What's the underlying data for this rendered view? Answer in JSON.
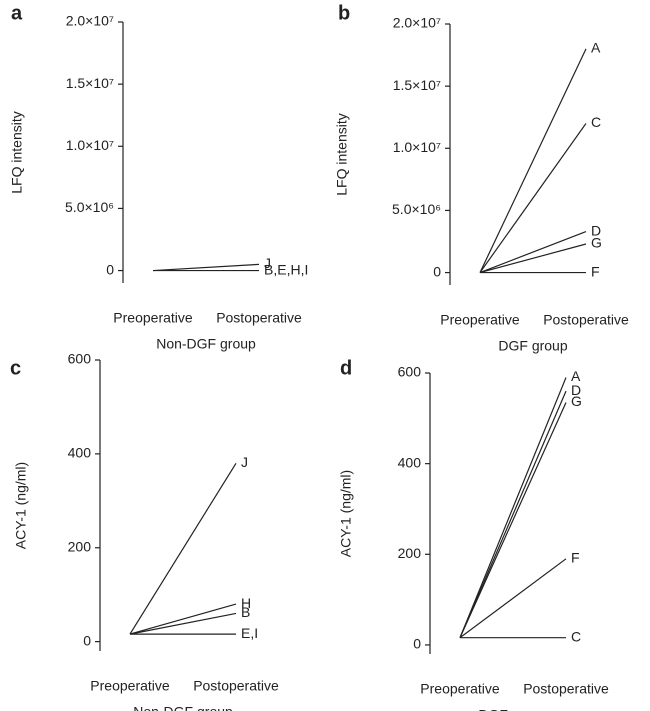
{
  "chart_data": [
    {
      "type": "line",
      "panel_label": "a",
      "ylabel": "LFQ intensity",
      "xlabel": "Non-DGF group",
      "categories": [
        "Preoperative",
        "Postoperative"
      ],
      "series": [
        {
          "name": "J",
          "color": "#000000",
          "values": [
            0,
            500000
          ]
        },
        {
          "name": "B,E,H,I",
          "color": "#000000",
          "values": [
            0,
            0
          ]
        }
      ],
      "ylim": [
        -1000000,
        20000000
      ],
      "yticks": [
        0,
        {
          "value": 5000000,
          "label": "5.0×10⁶"
        },
        {
          "value": 10000000,
          "label": "1.0×10⁷"
        },
        {
          "value": 15000000,
          "label": "1.5×10⁷"
        },
        {
          "value": 20000000,
          "label": "2.0×10⁷"
        }
      ]
    },
    {
      "type": "line",
      "panel_label": "b",
      "ylabel": "LFQ intensity",
      "xlabel": "DGF group",
      "categories": [
        "Preoperative",
        "Postoperative"
      ],
      "series": [
        {
          "name": "A",
          "color": "#000000",
          "values": [
            0,
            18000000
          ]
        },
        {
          "name": "C",
          "color": "#000000",
          "values": [
            0,
            12000000
          ]
        },
        {
          "name": "D",
          "color": "#000000",
          "values": [
            0,
            3300000
          ]
        },
        {
          "name": "G",
          "color": "#000000",
          "values": [
            0,
            2300000
          ]
        },
        {
          "name": "F",
          "color": "#000000",
          "values": [
            0,
            0
          ]
        }
      ],
      "ylim": [
        -1000000,
        20000000
      ],
      "yticks": [
        0,
        {
          "value": 5000000,
          "label": "5.0×10⁶"
        },
        {
          "value": 10000000,
          "label": "1.0×10⁷"
        },
        {
          "value": 15000000,
          "label": "1.5×10⁷"
        },
        {
          "value": 20000000,
          "label": "2.0×10⁷"
        }
      ]
    },
    {
      "type": "line",
      "panel_label": "c",
      "ylabel": "ACY-1 (ng/ml)",
      "xlabel": "Non-DGF group",
      "categories": [
        "Preoperative",
        "Postoperative"
      ],
      "series": [
        {
          "name": "J",
          "color": "#000000",
          "values": [
            16,
            380
          ]
        },
        {
          "name": "H",
          "color": "#000000",
          "values": [
            16,
            80
          ]
        },
        {
          "name": "B",
          "color": "#000000",
          "values": [
            16,
            60
          ]
        },
        {
          "name": "E,I",
          "color": "#000000",
          "values": [
            16,
            16
          ]
        }
      ],
      "ylim": [
        -20,
        600
      ],
      "yticks": [
        0,
        200,
        400,
        600
      ]
    },
    {
      "type": "line",
      "panel_label": "d",
      "ylabel": "ACY-1 (ng/ml)",
      "xlabel": "DGF group",
      "categories": [
        "Preoperative",
        "Postoperative"
      ],
      "series": [
        {
          "name": "A",
          "color": "#000000",
          "values": [
            16,
            590
          ]
        },
        {
          "name": "D",
          "color": "#000000",
          "values": [
            16,
            560
          ]
        },
        {
          "name": "G",
          "color": "#000000",
          "values": [
            16,
            535
          ]
        },
        {
          "name": "F",
          "color": "#000000",
          "values": [
            16,
            190
          ]
        },
        {
          "name": "C",
          "color": "#000000",
          "values": [
            16,
            16
          ]
        }
      ],
      "ylim": [
        -20,
        600
      ],
      "yticks": [
        0,
        200,
        400,
        600
      ]
    }
  ]
}
